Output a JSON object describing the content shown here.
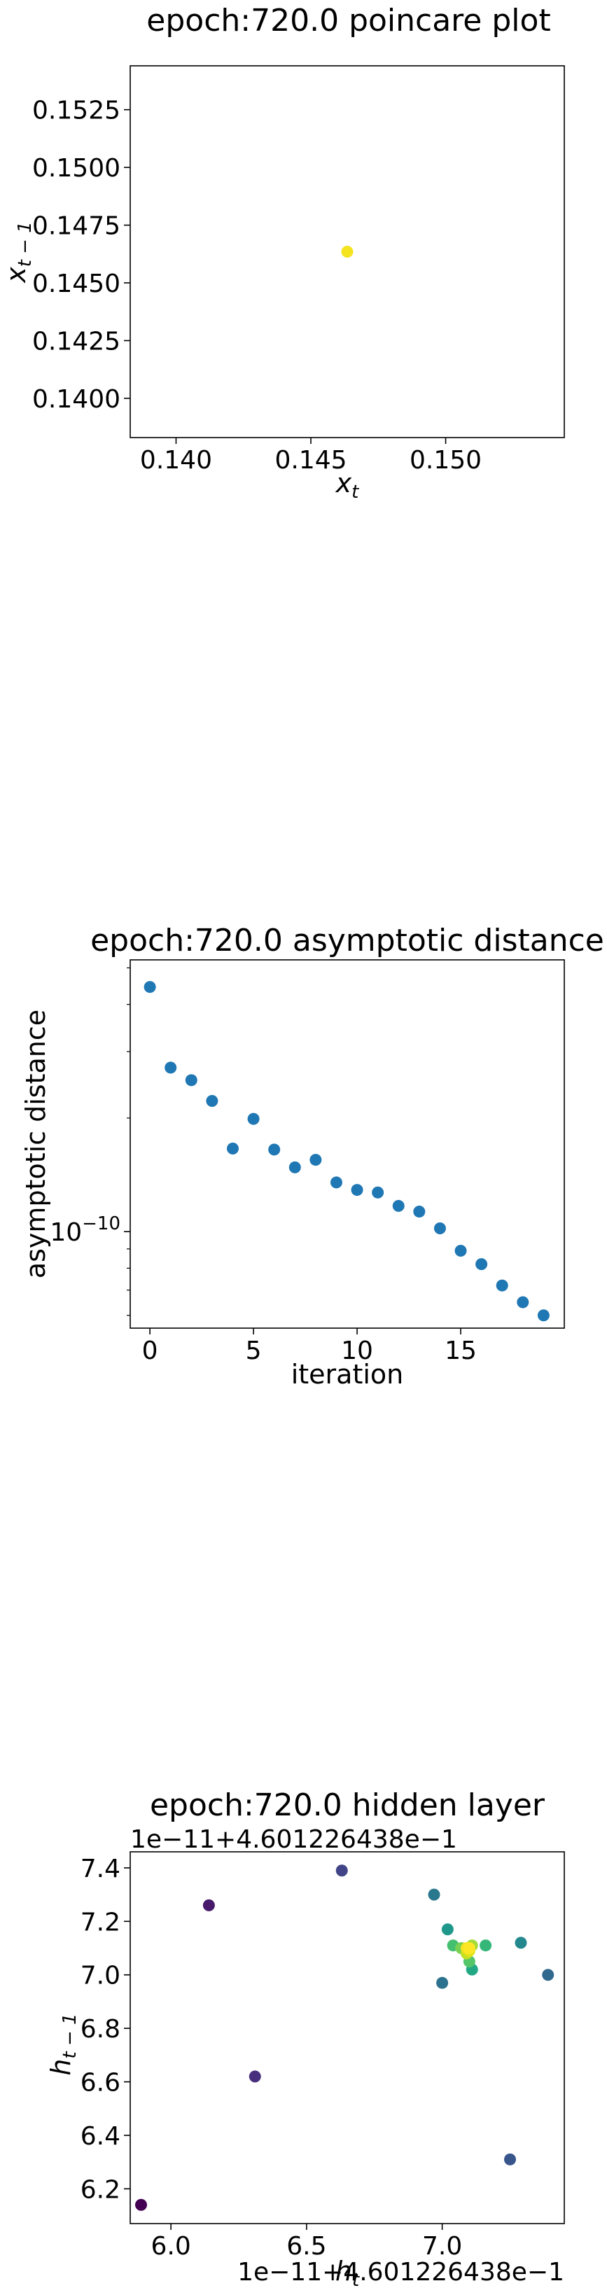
{
  "chart_data": [
    {
      "type": "scatter",
      "title": "epoch:720.0 poincare plot",
      "xlabel": "x_t",
      "ylabel": "x_{t-1}",
      "xlim": [
        0.1383,
        0.1544
      ],
      "ylim": [
        0.1383,
        0.1544
      ],
      "xticks": [
        {
          "v": 0.14,
          "label": "0.140"
        },
        {
          "v": 0.145,
          "label": "0.145"
        },
        {
          "v": 0.15,
          "label": "0.150"
        }
      ],
      "yticks": [
        {
          "v": 0.14,
          "label": "0.1400"
        },
        {
          "v": 0.1425,
          "label": "0.1425"
        },
        {
          "v": 0.145,
          "label": "0.1450"
        },
        {
          "v": 0.1475,
          "label": "0.1475"
        },
        {
          "v": 0.15,
          "label": "0.1500"
        },
        {
          "v": 0.1525,
          "label": "0.1525"
        }
      ],
      "points": [
        {
          "x": 0.14635,
          "y": 0.14635,
          "color": "#f4e31f"
        }
      ]
    },
    {
      "type": "scatter",
      "title": "epoch:720.0 asymptotic distance",
      "xlabel": "iteration",
      "ylabel": "asymptotic distance",
      "xlim": [
        -0.95,
        20.0
      ],
      "ylog": true,
      "ylim": [
        5.55e-11,
        5.25e-10
      ],
      "color": "#1f77b4",
      "xticks": [
        {
          "v": 0,
          "label": "0"
        },
        {
          "v": 5,
          "label": "5"
        },
        {
          "v": 10,
          "label": "10"
        },
        {
          "v": 15,
          "label": "15"
        }
      ],
      "yticks": [
        {
          "v": 1e-10,
          "base": "10",
          "exp": "−10"
        }
      ],
      "x": [
        0,
        1,
        2,
        3,
        4,
        5,
        6,
        7,
        8,
        9,
        10,
        11,
        12,
        13,
        14,
        15,
        16,
        17,
        18,
        19
      ],
      "values": [
        4.45e-10,
        2.72e-10,
        2.52e-10,
        2.22e-10,
        1.66e-10,
        1.99e-10,
        1.65e-10,
        1.48e-10,
        1.55e-10,
        1.35e-10,
        1.29e-10,
        1.27e-10,
        1.17e-10,
        1.13e-10,
        1.02e-10,
        8.9e-11,
        8.2e-11,
        7.2e-11,
        6.5e-11,
        6e-11
      ]
    },
    {
      "type": "scatter",
      "title": "epoch:720.0 hidden layer",
      "xlabel": "h_t",
      "ylabel": "h_{t-1}",
      "x_offset": "1e−11+4.601226438e−1",
      "y_offset": "1e−11+4.601226438e−1",
      "xlim": [
        5.85,
        7.45
      ],
      "ylim": [
        6.07,
        7.46
      ],
      "xticks": [
        {
          "v": 6.0,
          "label": "6.0"
        },
        {
          "v": 6.5,
          "label": "6.5"
        },
        {
          "v": 7.0,
          "label": "7.0"
        }
      ],
      "yticks": [
        {
          "v": 6.2,
          "label": "6.2"
        },
        {
          "v": 6.4,
          "label": "6.4"
        },
        {
          "v": 6.6,
          "label": "6.6"
        },
        {
          "v": 6.8,
          "label": "6.8"
        },
        {
          "v": 7.0,
          "label": "7.0"
        },
        {
          "v": 7.2,
          "label": "7.2"
        },
        {
          "v": 7.4,
          "label": "7.4"
        }
      ],
      "points": [
        {
          "x": 5.89,
          "y": 6.14,
          "color": "#440154"
        },
        {
          "x": 6.14,
          "y": 7.26,
          "color": "#481a6c"
        },
        {
          "x": 6.31,
          "y": 6.62,
          "color": "#472f7d"
        },
        {
          "x": 6.63,
          "y": 7.39,
          "color": "#414487"
        },
        {
          "x": 7.25,
          "y": 6.31,
          "color": "#39568c"
        },
        {
          "x": 7.39,
          "y": 7.0,
          "color": "#31688e"
        },
        {
          "x": 7.0,
          "y": 6.97,
          "color": "#2c728e"
        },
        {
          "x": 6.97,
          "y": 7.3,
          "color": "#2a788e"
        },
        {
          "x": 7.29,
          "y": 7.12,
          "color": "#23898e"
        },
        {
          "x": 7.02,
          "y": 7.17,
          "color": "#1f988b"
        },
        {
          "x": 7.11,
          "y": 7.02,
          "color": "#22a884"
        },
        {
          "x": 7.16,
          "y": 7.11,
          "color": "#35b779"
        },
        {
          "x": 7.04,
          "y": 7.11,
          "color": "#44bf70"
        },
        {
          "x": 7.1,
          "y": 7.05,
          "color": "#54c568"
        },
        {
          "x": 7.07,
          "y": 7.1,
          "color": "#7ad151"
        },
        {
          "x": 7.11,
          "y": 7.11,
          "color": "#a5db36"
        },
        {
          "x": 7.09,
          "y": 7.08,
          "color": "#c2df23"
        },
        {
          "x": 7.1,
          "y": 7.09,
          "color": "#dfe318"
        },
        {
          "x": 7.09,
          "y": 7.1,
          "color": "#f4e31f"
        },
        {
          "x": 7.1,
          "y": 7.1,
          "color": "#fde725"
        }
      ]
    }
  ]
}
